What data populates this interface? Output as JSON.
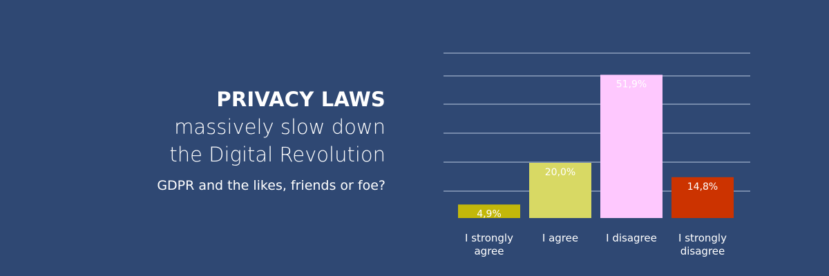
{
  "headline": {
    "title": "PRIVACY LAWS",
    "line1": "massively slow down",
    "line2": "the Digital Revolution",
    "caption": "GDPR and the likes, friends or foe?"
  },
  "chart_data": {
    "type": "bar",
    "categories": [
      [
        "I strongly",
        "agree"
      ],
      [
        "I agree"
      ],
      [
        "I disagree"
      ],
      [
        "I strongly",
        "disagree"
      ]
    ],
    "values": [
      4.9,
      20.0,
      51.9,
      14.8
    ],
    "value_labels": [
      "4,9%",
      "20,0%",
      "51,9%",
      "14,8%"
    ],
    "colors": [
      "#c3b80a",
      "#d8d964",
      "#fec8fe",
      "#cc3300"
    ],
    "value_label_colors": [
      "#ffffff",
      "#ffffff",
      "#ffffff",
      "#ffffff"
    ],
    "ylim": [
      0,
      57
    ],
    "grid": true,
    "grid_color": "#9fb0cc"
  }
}
